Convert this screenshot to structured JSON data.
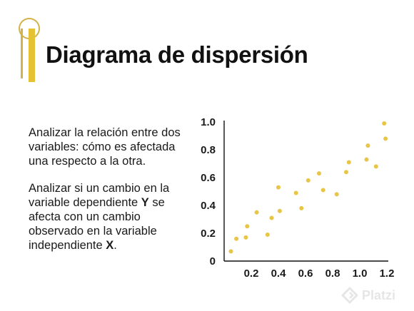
{
  "slide": {
    "title": "Diagrama de dispersión",
    "accent_color": "#e5c233",
    "paragraph1": "Analizar la relación entre dos variables: cómo es afectada una respecto a la otra.",
    "paragraph2": {
      "part1": "Analizar si un cambio en la variable dependiente ",
      "var_y": "Y",
      "part2": " se afecta con un cambio observado en la variable independiente ",
      "var_x": "X",
      "part3": "."
    }
  },
  "chart_data": {
    "type": "scatter",
    "point_color": "#e8c547",
    "xlim": [
      0,
      1.2
    ],
    "ylim": [
      0,
      1.0
    ],
    "x_ticks": [
      "0.2",
      "0.4",
      "0.6",
      "0.8",
      "1.0",
      "1.2"
    ],
    "y_ticks": [
      "0",
      "0.2",
      "0.4",
      "0.6",
      "0.8",
      "1.0"
    ],
    "points": [
      {
        "x": 0.05,
        "y": 0.07
      },
      {
        "x": 0.09,
        "y": 0.16
      },
      {
        "x": 0.16,
        "y": 0.17
      },
      {
        "x": 0.17,
        "y": 0.25
      },
      {
        "x": 0.24,
        "y": 0.35
      },
      {
        "x": 0.32,
        "y": 0.19
      },
      {
        "x": 0.35,
        "y": 0.31
      },
      {
        "x": 0.41,
        "y": 0.36
      },
      {
        "x": 0.4,
        "y": 0.53
      },
      {
        "x": 0.53,
        "y": 0.49
      },
      {
        "x": 0.57,
        "y": 0.38
      },
      {
        "x": 0.62,
        "y": 0.58
      },
      {
        "x": 0.7,
        "y": 0.63
      },
      {
        "x": 0.73,
        "y": 0.51
      },
      {
        "x": 0.83,
        "y": 0.48
      },
      {
        "x": 0.9,
        "y": 0.64
      },
      {
        "x": 0.92,
        "y": 0.71
      },
      {
        "x": 1.05,
        "y": 0.73
      },
      {
        "x": 1.06,
        "y": 0.83
      },
      {
        "x": 1.12,
        "y": 0.68
      },
      {
        "x": 1.18,
        "y": 0.99
      },
      {
        "x": 1.19,
        "y": 0.88
      }
    ]
  },
  "watermark": {
    "label": "Platzi"
  }
}
